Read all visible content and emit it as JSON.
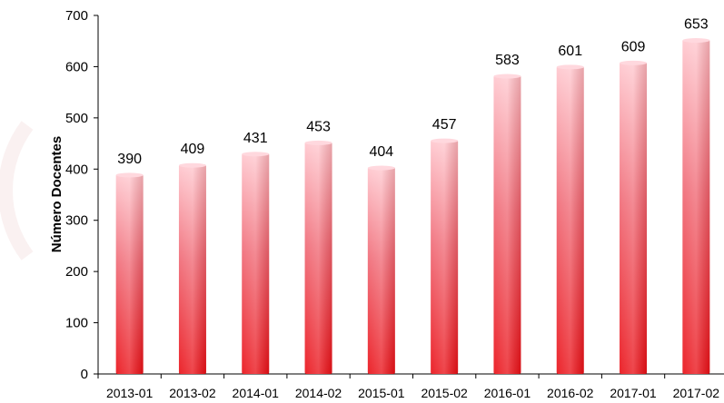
{
  "chart_data": {
    "type": "bar",
    "title": "",
    "xlabel": "",
    "ylabel": "Número Docentes",
    "ylim": [
      0,
      700
    ],
    "yticks": [
      0,
      100,
      200,
      300,
      400,
      500,
      600,
      700
    ],
    "grid": false,
    "legend": "none",
    "categories": [
      "2013-01",
      "2013-02",
      "2014-01",
      "2014-02",
      "2015-01",
      "2015-02",
      "2016-01",
      "2016-02",
      "2017-01",
      "2017-02"
    ],
    "series": [
      {
        "values": [
          390,
          409,
          431,
          453,
          404,
          457,
          583,
          601,
          609,
          653
        ]
      }
    ],
    "colors": {
      "bar_top": "#ffc8cf",
      "bar_mid": "#f06a76",
      "bar_bottom": "#ea1118",
      "axis": "#000000"
    }
  }
}
